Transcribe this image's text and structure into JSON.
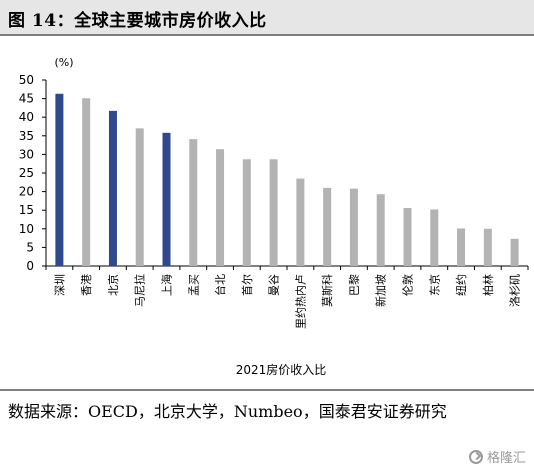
{
  "header": {
    "title": "图 14：全球主要城市房价收入比"
  },
  "chart_data": {
    "type": "bar",
    "unit_label": "(%)",
    "xlabel": "2021房价收入比",
    "ylim": [
      0,
      50
    ],
    "yticks": [
      0,
      5,
      10,
      15,
      20,
      25,
      30,
      35,
      40,
      45,
      50
    ],
    "grid": false,
    "categories": [
      "深圳",
      "香港",
      "北京",
      "马尼拉",
      "上海",
      "孟买",
      "台北",
      "首尔",
      "曼谷",
      "里约热内卢",
      "莫斯科",
      "巴黎",
      "新加坡",
      "伦敦",
      "东京",
      "纽约",
      "柏林",
      "洛杉矶"
    ],
    "values": [
      46.3,
      45.1,
      41.7,
      37.0,
      35.8,
      34.1,
      31.4,
      28.7,
      28.7,
      23.5,
      21.0,
      20.8,
      19.3,
      15.6,
      15.2,
      10.1,
      10.0,
      7.3
    ],
    "highlight": [
      "深圳",
      "北京",
      "上海"
    ],
    "colors": {
      "highlight": "#2e4a8c",
      "normal": "#b3b3b3",
      "axis": "#000000"
    }
  },
  "footer": {
    "source_text": "数据来源：OECD，北京大学，Numbeo，国泰君安证券研究",
    "watermark_icon": "gezhi-logo-icon",
    "watermark_text": "格隆汇"
  }
}
